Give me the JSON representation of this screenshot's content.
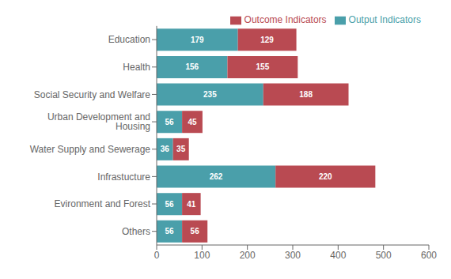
{
  "chart_data": {
    "type": "bar",
    "orientation": "horizontal",
    "stacked": true,
    "categories": [
      "Education",
      "Health",
      "Social Security and Welfare",
      "Urban Development and Housing",
      "Water Supply and Sewerage",
      "Infrastucture",
      "Evironment and Forest",
      "Others"
    ],
    "series": [
      {
        "name": "Output Indicators",
        "color": "#4a9faa",
        "values": [
          179,
          156,
          235,
          56,
          36,
          262,
          56,
          56
        ]
      },
      {
        "name": "Outcome Indicators",
        "color": "#b94a52",
        "values": [
          129,
          155,
          188,
          45,
          35,
          220,
          41,
          56
        ]
      }
    ],
    "xlim": [
      0,
      600
    ],
    "xticks": [
      0,
      100,
      200,
      300,
      400,
      500,
      600
    ],
    "data_labels": true,
    "legend": "upper right",
    "grid": false
  }
}
